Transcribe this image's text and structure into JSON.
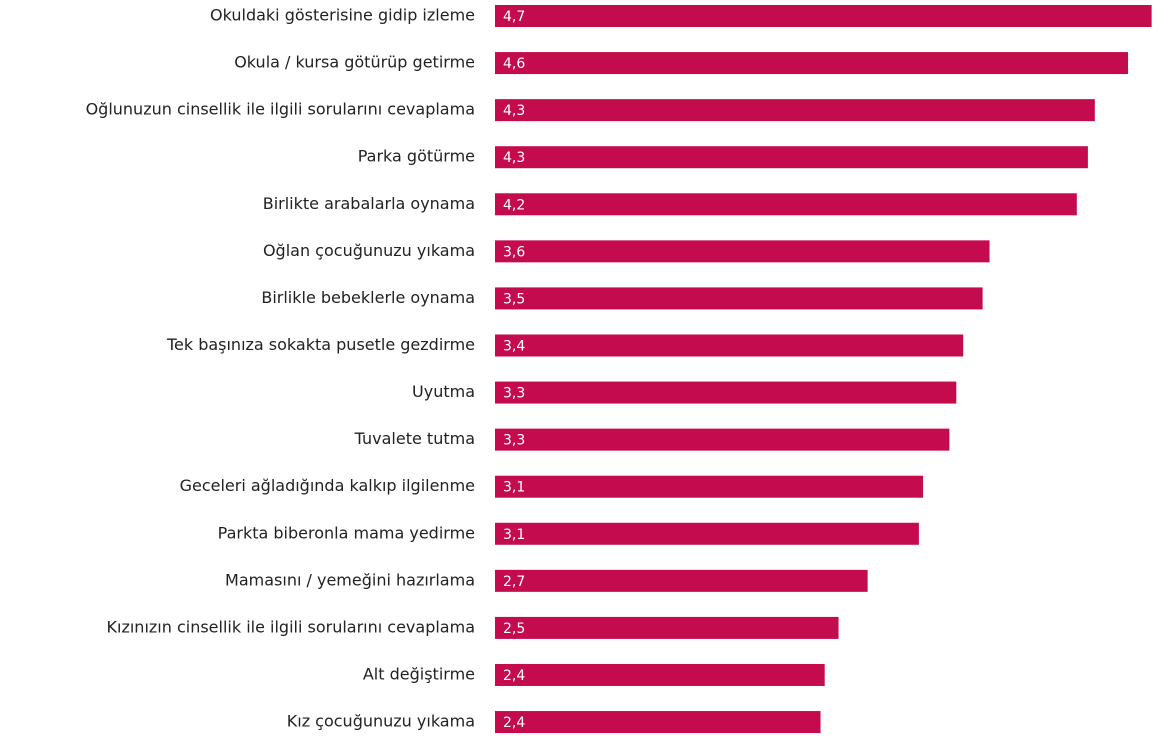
{
  "chart_data": {
    "type": "bar",
    "orientation": "horizontal",
    "categories": [
      "Okuldaki gösterisine gidip izleme",
      "Okula / kursa götürüp getirme",
      "Oğlunuzun cinsellik ile ilgili sorularını cevaplama",
      "Parka götürme",
      "Birlikte arabalarla oynama",
      "Oğlan çocuğunuzu yıkama",
      "Birlikle bebeklerle oynama",
      "Tek başınıza sokakta pusetle gezdirme",
      "Uyutma",
      "Tuvalete tutma",
      "Geceleri ağladığında kalkıp ilgilenme",
      "Parkta biberonla mama yedirme",
      "Mamasını / yemeğini hazırlama",
      "Kızınızın cinsellik ile ilgili sorularını cevaplama",
      "Alt değiştirme",
      "Kız çocuğunuzu yıkama"
    ],
    "values": [
      4.74,
      4.57,
      4.33,
      4.28,
      4.2,
      3.57,
      3.52,
      3.38,
      3.33,
      3.28,
      3.09,
      3.06,
      2.69,
      2.48,
      2.38,
      2.35
    ],
    "value_labels": [
      "4,7",
      "4,6",
      "4,3",
      "4,3",
      "4,2",
      "3,6",
      "3,5",
      "3,4",
      "3,3",
      "3,3",
      "3,1",
      "3,1",
      "2,7",
      "2,5",
      "2,4",
      "2,4"
    ],
    "color": "#c30b4e",
    "xlim": [
      0,
      4.75
    ]
  }
}
